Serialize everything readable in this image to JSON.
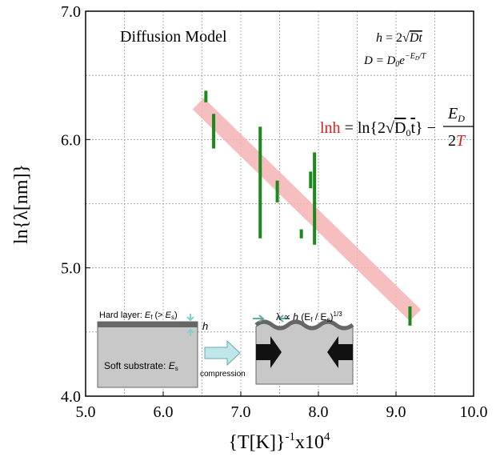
{
  "chart_data": {
    "type": "range-scatter",
    "annotation_title": "Diffusion Model",
    "formulas": {
      "f1": {
        "lhs": "h",
        "rhs": " = 2√",
        "rad": "Dt"
      },
      "f2": {
        "lhs": "D = D",
        "sub0": "0",
        "mid": "e",
        "sup": "−E",
        "supsub": "D",
        "supend": "/T"
      },
      "f3": {
        "red_lhs": "lnh",
        "rhs": " = ln{2√",
        "rad": "D",
        "radsub": "0",
        "radend": "t",
        "close": "} −",
        "num": "E",
        "numsub": "D",
        "den": "2",
        "den_red": "T"
      }
    },
    "x_label": {
      "base": "{T[K]}",
      "sup1": "-1",
      "mid": "x10",
      "sup2": "4"
    },
    "y_label": "ln{λ[nm]}",
    "xlim": [
      5,
      10
    ],
    "ylim": [
      4,
      7
    ],
    "xticks": [
      {
        "value": 5,
        "label": "5.0"
      },
      {
        "value": 6,
        "label": "6.0"
      },
      {
        "value": 7,
        "label": "7.0"
      },
      {
        "value": 8,
        "label": "8.0"
      },
      {
        "value": 9,
        "label": "9.0"
      },
      {
        "value": 10,
        "label": "10.0"
      }
    ],
    "yticks": [
      {
        "value": 4,
        "label": "4.0"
      },
      {
        "value": 5,
        "label": "5.0"
      },
      {
        "value": 6,
        "label": "6.0"
      },
      {
        "value": 7,
        "label": "7.0"
      }
    ],
    "grid": true,
    "xgrid": [
      5.5,
      6,
      6.5,
      7,
      7.5,
      8,
      8.5,
      9,
      9.5
    ],
    "ygrid": [
      4.5,
      5,
      5.5,
      6,
      6.5
    ],
    "series": [
      {
        "color": "#1a8a1a",
        "x": [
          6.55,
          6.65,
          7.25,
          7.47,
          7.78,
          7.9,
          7.95,
          9.18
        ],
        "low": [
          6.29,
          5.93,
          5.23,
          5.51,
          5.23,
          5.62,
          5.18,
          4.55
        ],
        "high": [
          6.38,
          6.2,
          6.1,
          5.68,
          5.3,
          5.75,
          5.9,
          4.7
        ]
      }
    ],
    "fit": {
      "color": "#f5b3b3",
      "x": [
        6.45,
        9.25
      ],
      "y": [
        6.28,
        4.63
      ]
    },
    "inset": {
      "hard": {
        "a": "Hard layer: ",
        "e": "E",
        "f": "f",
        "b": " (> ",
        "e2": "E",
        "s": "s",
        "c": ")"
      },
      "h": "h",
      "soft": {
        "a": "Soft substrate: ",
        "e": "E",
        "s": "s"
      },
      "compression": "compression",
      "lambda": {
        "a": "λ ∝ ",
        "h": "h",
        "b": " (E",
        "f": "f",
        "c": " / E",
        "s": "s",
        "d": ")",
        "sup": "1/3"
      }
    }
  }
}
